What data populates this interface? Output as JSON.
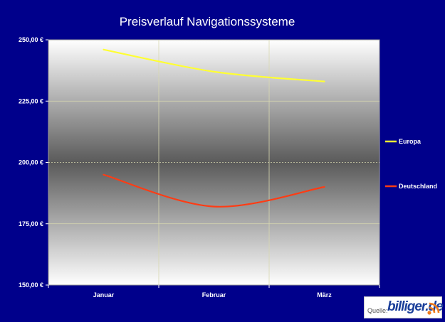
{
  "chart_data": {
    "type": "line",
    "title": "Preisverlauf  Navigationssysteme",
    "categories": [
      "Januar",
      "Februar",
      "März"
    ],
    "y_ticks": [
      "150,00 €",
      "175,00 €",
      "200,00 €",
      "225,00 €",
      "250,00 €"
    ],
    "ylim": [
      150,
      250
    ],
    "grid": true,
    "legend_position": "right",
    "series": [
      {
        "name": "Europa",
        "values": [
          246,
          237,
          233
        ],
        "color": "#ffff33"
      },
      {
        "name": "Deutschland",
        "values": [
          195,
          182,
          190
        ],
        "color": "#ff3c14"
      }
    ]
  },
  "source": {
    "label": "Quelle:",
    "brand": "billiger.de",
    "icon": "signal-waves-icon"
  }
}
